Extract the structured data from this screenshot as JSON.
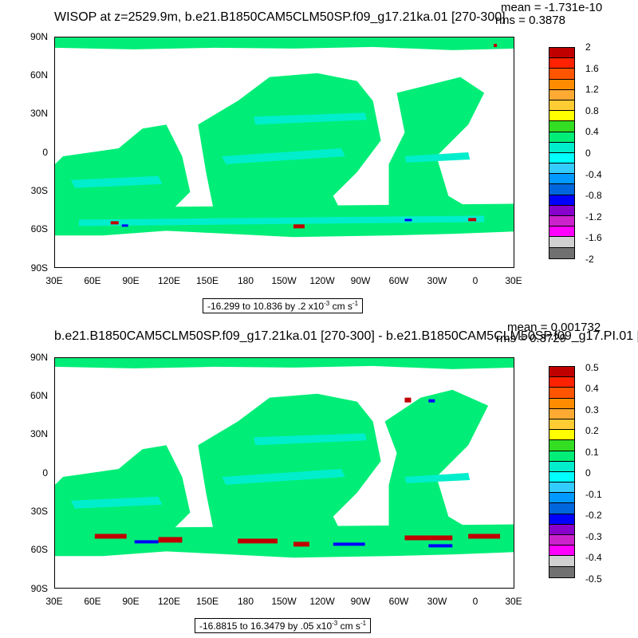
{
  "panels": [
    {
      "title": "WISOP at z=2529.9m, b.e21.B1850CAM5CLM50SP.f09_g17.21ka.01 [270-300]",
      "mean_text": "mean = -1.731e-10",
      "rms_text": "rms = 0.3878",
      "range_text": "-16.299 to 10.836 by .2 x10",
      "range_exp": "-3",
      "range_units": " cm s",
      "range_units_exp": "-1",
      "colorbar_labels": [
        "2",
        "1.6",
        "1.2",
        "0.8",
        "0.4",
        "0",
        "-0.4",
        "-0.8",
        "-1.2",
        "-1.6",
        "-2"
      ]
    },
    {
      "title": "b.e21.B1850CAM5CLM50SP.f09_g17.21ka.01 [270-300] - b.e21.B1850CAM5CLM50SP.f09_g17.PI.01 [",
      "mean_text": "mean = 0.001732",
      "rms_text": "rms = 0.3729",
      "range_text": "-16.8815 to 16.3479 by .05 x10",
      "range_exp": "-3",
      "range_units": " cm s",
      "range_units_exp": "-1",
      "colorbar_labels": [
        "0.5",
        "0.4",
        "0.3",
        "0.2",
        "0.1",
        "0",
        "-0.1",
        "-0.2",
        "-0.3",
        "-0.4",
        "-0.5"
      ]
    }
  ],
  "lat_labels": [
    "90N",
    "60N",
    "30N",
    "0",
    "30S",
    "60S",
    "90S"
  ],
  "lon_labels": [
    "30E",
    "60E",
    "90E",
    "120E",
    "150E",
    "180",
    "150W",
    "120W",
    "90W",
    "60W",
    "30W",
    "0",
    "30E"
  ],
  "colorbar_colors": [
    "#c00000",
    "#ff2200",
    "#ff5500",
    "#ff8c00",
    "#ffaa33",
    "#ffcc33",
    "#ffff00",
    "#33dd22",
    "#00ee77",
    "#00eecc",
    "#00ffff",
    "#33ccff",
    "#0099ff",
    "#0066dd",
    "#0000ff",
    "#8800cc",
    "#cc22cc",
    "#ff00ff",
    "#d0d0d0",
    "#707070"
  ],
  "map_colors": {
    "land": "#ffffff",
    "ocean": "#00ee77",
    "ocean_alt": "#00eecc",
    "positive": "#c00000",
    "negative": "#0000ff"
  }
}
